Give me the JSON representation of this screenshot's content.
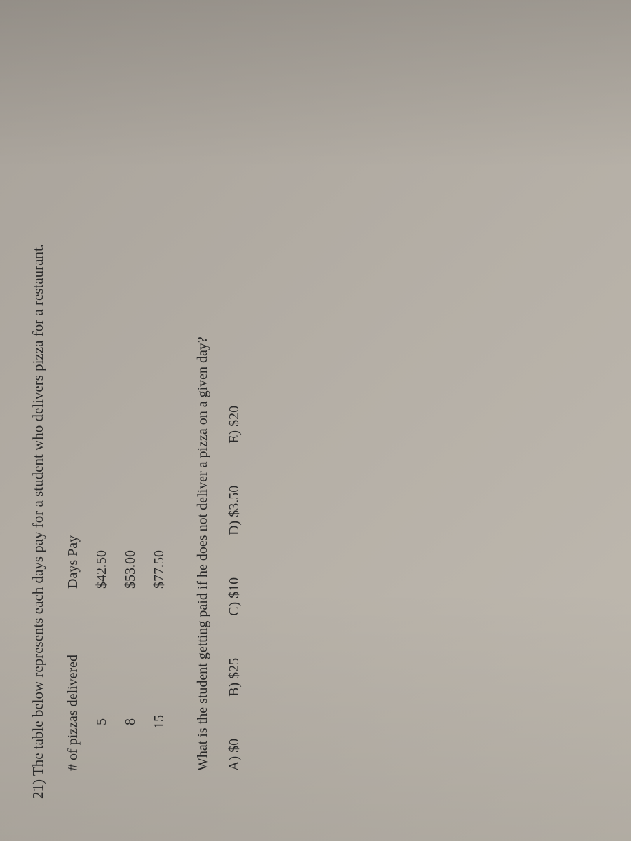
{
  "question": {
    "number": "21)",
    "text": "The table below represents each days pay for a student who delivers pizza for a restaurant."
  },
  "table": {
    "headers": {
      "col1": "# of pizzas delivered",
      "col2": "Days Pay"
    },
    "rows": [
      {
        "pizzas": "5",
        "pay": "$42.50"
      },
      {
        "pizzas": "8",
        "pay": "$53.00"
      },
      {
        "pizzas": "15",
        "pay": "$77.50"
      }
    ]
  },
  "prompt": "What is the student getting paid if he does not deliver a pizza on a given day?",
  "answers": [
    {
      "label": "A)",
      "value": "$0"
    },
    {
      "label": "B)",
      "value": "$25"
    },
    {
      "label": "C)",
      "value": "$10"
    },
    {
      "label": "D)",
      "value": "$3.50"
    },
    {
      "label": "E)",
      "value": "$20"
    }
  ],
  "colors": {
    "text": "#2a2a2a",
    "background_light": "#c0bab0",
    "background_dark": "#a8a29a"
  },
  "typography": {
    "body_fontsize": 20,
    "font_family": "Times New Roman"
  }
}
